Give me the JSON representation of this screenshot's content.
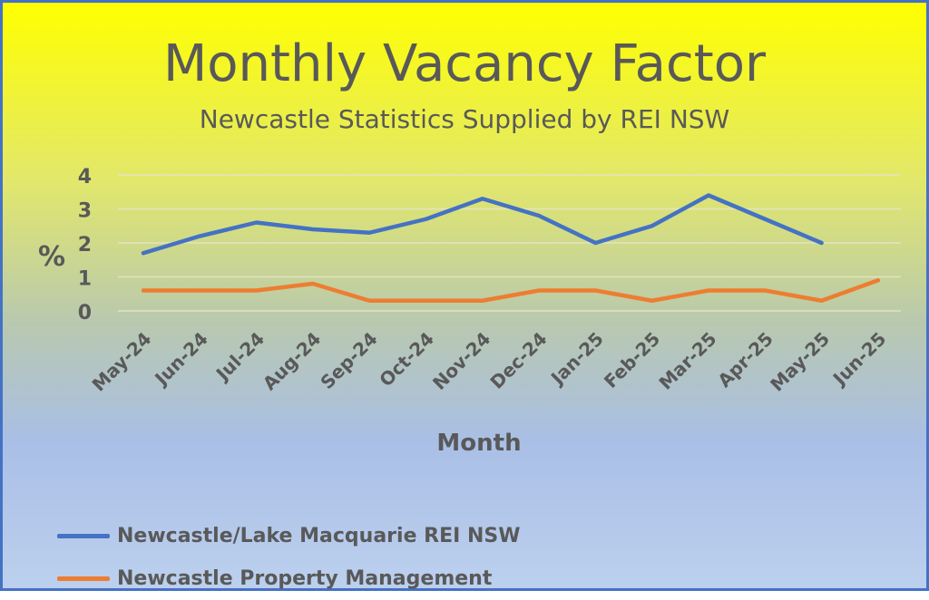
{
  "colors": {
    "series_blue": "#4472c4",
    "series_orange": "#ed7d31",
    "text_gray": "#595959",
    "gridline": "#e3e3c0"
  },
  "chart_data": {
    "type": "line",
    "title": "Monthly Vacancy Factor",
    "subtitle": "Newcastle Statistics Supplied by REI NSW",
    "xlabel": "Month",
    "ylabel": "%",
    "ylim": [
      0,
      4
    ],
    "yticks": [
      "0",
      "1",
      "2",
      "3",
      "4"
    ],
    "grid": true,
    "legend_position": "bottom-left",
    "categories": [
      "May-24",
      "Jun-24",
      "Jul-24",
      "Aug-24",
      "Sep-24",
      "Oct-24",
      "Nov-24",
      "Dec-24",
      "Jan-25",
      "Feb-25",
      "Mar-25",
      "Apr-25",
      "May-25",
      "Jun-25"
    ],
    "series": [
      {
        "name": "Newcastle/Lake Macquarie REI NSW",
        "color": "#4472c4",
        "values": [
          1.7,
          2.2,
          2.6,
          2.4,
          2.3,
          2.7,
          3.3,
          2.8,
          2.0,
          2.5,
          3.4,
          2.7,
          2.0,
          null
        ]
      },
      {
        "name": "Newcastle Property Management",
        "color": "#ed7d31",
        "values": [
          0.6,
          0.6,
          0.6,
          0.8,
          0.3,
          0.3,
          0.3,
          0.6,
          0.6,
          0.3,
          0.6,
          0.6,
          0.3,
          0.9
        ]
      }
    ]
  }
}
